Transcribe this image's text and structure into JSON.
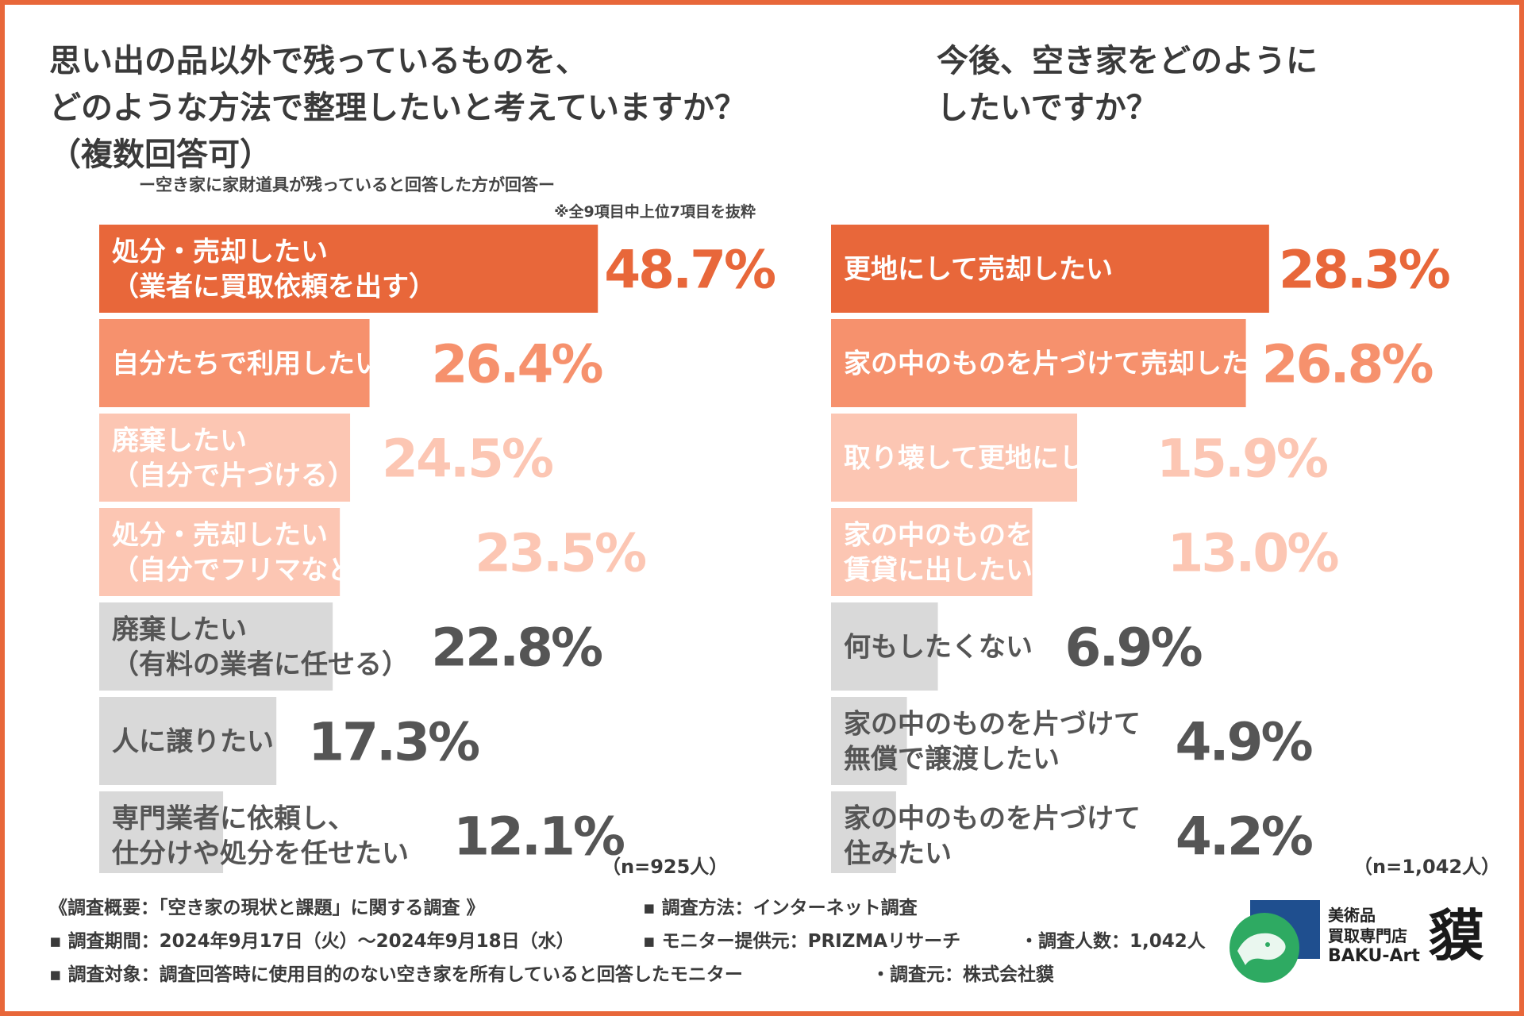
{
  "colors": {
    "frame": "#e8673a",
    "top": "#e8673a",
    "mid": "#f6916d",
    "light": "#fcc6b3",
    "gray": "#d9d9d9",
    "value_gray": "#555555",
    "label_on_fill": "#ffffff",
    "label_on_gray": "#555555"
  },
  "chart_data": [
    {
      "type": "bar",
      "orientation": "horizontal",
      "title": "思い出の品以外で残っているものを、\nどのような方法で整理したいと考えていますか？\n（複数回答可）",
      "subtitle": "ー空き家に家財道具が残っていると回答した方が回答ー",
      "note": "※全9項目中上位7項目を抜粋",
      "sample": "（n=925人）",
      "unit": "%",
      "categories": [
        "処分・売却したい\n（業者に買取依頼を出す）",
        "自分たちで利用したい",
        "廃棄したい\n（自分で片づける）",
        "処分・売却したい\n（自分でフリマなどに出す）",
        "廃棄したい\n（有料の業者に任せる）",
        "人に譲りたい",
        "専門業者に依頼し、\n仕分けや処分を任せたい"
      ],
      "values": [
        48.7,
        26.4,
        24.5,
        23.5,
        22.8,
        17.3,
        12.1
      ],
      "value_labels": [
        "48.7%",
        "26.4%",
        "24.5%",
        "23.5%",
        "22.8%",
        "17.3%",
        "12.1%"
      ],
      "tones": [
        "top",
        "mid",
        "light",
        "light",
        "gray",
        "gray",
        "gray"
      ]
    },
    {
      "type": "bar",
      "orientation": "horizontal",
      "title": "今後、空き家をどのように\nしたいですか？",
      "sample": "（n=1,042人）",
      "unit": "%",
      "categories": [
        "更地にして売却したい",
        "家の中のものを片づけて売却したい",
        "取り壊して更地にしたい",
        "家の中のものを片づけて\n賃貸に出したい",
        "何もしたくない",
        "家の中のものを片づけて\n無償で譲渡したい",
        "家の中のものを片づけて\n住みたい"
      ],
      "values": [
        28.3,
        26.8,
        15.9,
        13.0,
        6.9,
        4.9,
        4.2
      ],
      "value_labels": [
        "28.3%",
        "26.8%",
        "15.9%",
        "13.0%",
        "6.9%",
        "4.9%",
        "4.2%"
      ],
      "tones": [
        "top",
        "mid",
        "light",
        "light",
        "gray",
        "gray",
        "gray"
      ]
    }
  ],
  "footer": {
    "survey_name": "《調査概要：「空き家の現状と課題」に関する調査 》",
    "period": "▪ 調査期間：2024年9月17日（火）〜2024年9月18日（水）",
    "target": "▪ 調査対象：調査回答時に使用目的のない空き家を所有していると回答したモニター",
    "method": "▪ 調査方法：インターネット調査",
    "provider": "▪ モニター提供元：PRIZMAリサーチ",
    "count": "・調査人数：1,042人",
    "organizer": "・調査元：株式会社貘"
  },
  "logo": {
    "line1": "美術品\n買取専門店",
    "brand": "BAKU-Art",
    "kanji": "貘",
    "icon": "tapir-logo-icon"
  }
}
